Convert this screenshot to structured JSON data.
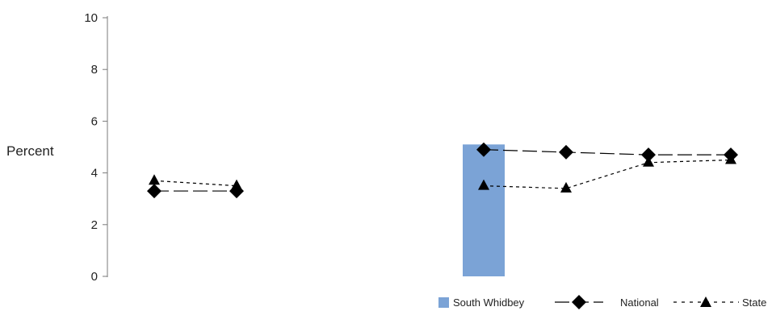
{
  "chart_data": {
    "type": "bar",
    "ylabel": "Percent",
    "ylim": [
      0,
      10
    ],
    "yticks": [
      0,
      2,
      4,
      6,
      8,
      10
    ],
    "grid": false,
    "legend_position": "bottom-right",
    "categories": [
      "",
      "",
      "",
      "",
      "",
      "",
      "",
      ""
    ],
    "series": [
      {
        "name": "South Whidbey",
        "type": "bar",
        "color": "#7ba3d6",
        "values": [
          null,
          null,
          null,
          null,
          5.1,
          null,
          null,
          null
        ]
      },
      {
        "name": "National",
        "type": "line",
        "marker": "diamond",
        "dash": "long-dash",
        "color": "#000000",
        "values": [
          3.3,
          3.3,
          null,
          null,
          4.9,
          4.8,
          4.7,
          4.7
        ]
      },
      {
        "name": "State",
        "type": "line",
        "marker": "triangle",
        "dash": "short-dash",
        "color": "#000000",
        "values": [
          3.7,
          3.5,
          null,
          null,
          3.5,
          3.4,
          4.4,
          4.5
        ]
      }
    ]
  }
}
